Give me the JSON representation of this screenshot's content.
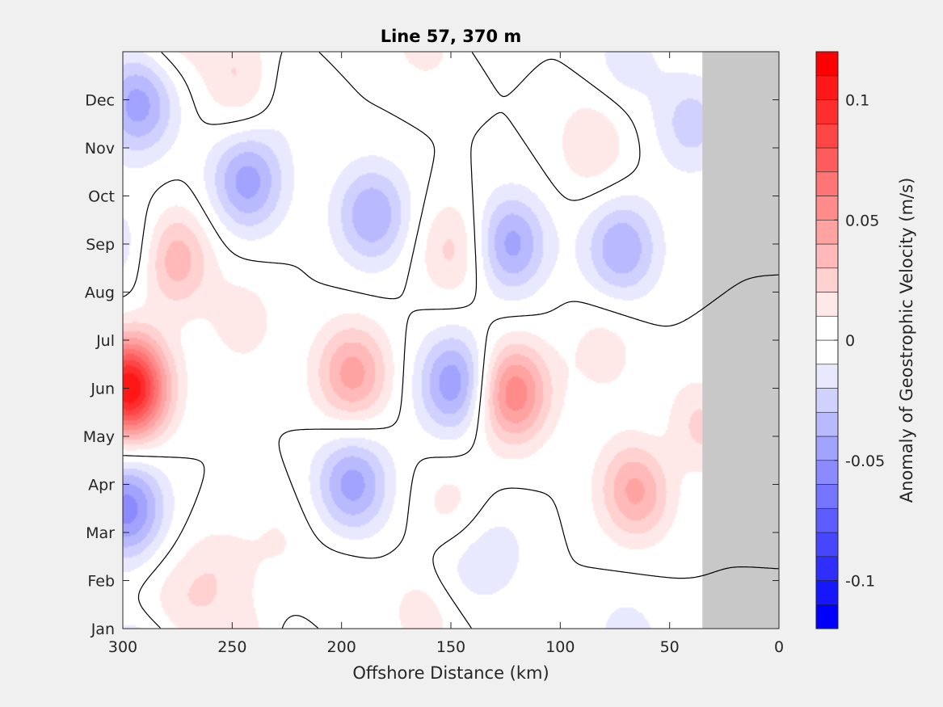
{
  "chart_data": {
    "type": "heatmap",
    "title": "Line 57, 370 m",
    "xlabel": "Offshore Distance (km)",
    "ylabel": "",
    "x_reversed": true,
    "xlim": [
      300,
      0
    ],
    "x_ticks": [
      300,
      250,
      200,
      150,
      100,
      50,
      0
    ],
    "y_ticks": [
      "Jan",
      "Feb",
      "Mar",
      "Apr",
      "May",
      "Jun",
      "Jul",
      "Aug",
      "Sep",
      "Oct",
      "Nov",
      "Dec"
    ],
    "no_data_region_km": [
      0,
      35
    ],
    "no_data_color": "#c8c8c8",
    "colorbar": {
      "label": "Anomaly of Geostrophic Velocity (m/s)",
      "range": [
        -0.12,
        0.12
      ],
      "ticks": [
        0.1,
        0.05,
        0,
        -0.05,
        -0.1
      ],
      "tick_labels": [
        "0.1",
        "0.05",
        "0",
        "-0.05",
        "-0.1"
      ],
      "levels": 24,
      "positive_color": "#ff0000",
      "negative_color": "#0000ff",
      "zero_color": "#ffffff"
    },
    "zero_contour": true,
    "anomalies": [
      {
        "x_km": 297,
        "month": 5.0,
        "value": 0.11
      },
      {
        "x_km": 298,
        "month": 2.5,
        "value": -0.055
      },
      {
        "x_km": 293,
        "month": 10.9,
        "value": -0.045
      },
      {
        "x_km": 296,
        "month": 7.9,
        "value": -0.02
      },
      {
        "x_km": 277,
        "month": 7.7,
        "value": 0.04
      },
      {
        "x_km": 243,
        "month": 9.3,
        "value": -0.045
      },
      {
        "x_km": 247,
        "month": 11.4,
        "value": 0.02
      },
      {
        "x_km": 245,
        "month": 6.4,
        "value": 0.015
      },
      {
        "x_km": 195,
        "month": 5.3,
        "value": 0.045
      },
      {
        "x_km": 186,
        "month": 8.6,
        "value": -0.04
      },
      {
        "x_km": 195,
        "month": 3.0,
        "value": -0.045
      },
      {
        "x_km": 148,
        "month": 5.1,
        "value": -0.05
      },
      {
        "x_km": 122,
        "month": 4.9,
        "value": 0.06
      },
      {
        "x_km": 148,
        "month": 7.9,
        "value": 0.025
      },
      {
        "x_km": 123,
        "month": 8.0,
        "value": -0.045
      },
      {
        "x_km": 72,
        "month": 7.9,
        "value": -0.04
      },
      {
        "x_km": 65,
        "month": 2.9,
        "value": 0.045
      },
      {
        "x_km": 85,
        "month": 10.1,
        "value": 0.02
      },
      {
        "x_km": 40,
        "month": 10.5,
        "value": -0.025
      },
      {
        "x_km": 38,
        "month": 4.1,
        "value": 0.03
      },
      {
        "x_km": 48,
        "month": 3.7,
        "value": -0.015
      },
      {
        "x_km": 150,
        "month": 1.1,
        "value": -0.015
      },
      {
        "x_km": 130,
        "month": 1.6,
        "value": -0.015
      },
      {
        "x_km": 80,
        "month": 5.8,
        "value": 0.015
      },
      {
        "x_km": 257,
        "month": 1.2,
        "value": 0.015
      },
      {
        "x_km": 275,
        "month": 0.5,
        "value": 0.015
      },
      {
        "x_km": 228,
        "month": 1.9,
        "value": 0.01
      },
      {
        "x_km": 200,
        "month": 0.8,
        "value": 0.01
      },
      {
        "x_km": 160,
        "month": 12.4,
        "value": 0.02
      },
      {
        "x_km": 220,
        "month": 11.2,
        "value": -0.01
      },
      {
        "x_km": 70,
        "month": 11.8,
        "value": -0.015
      },
      {
        "x_km": 150,
        "month": 2.5,
        "value": 0.015
      }
    ]
  }
}
